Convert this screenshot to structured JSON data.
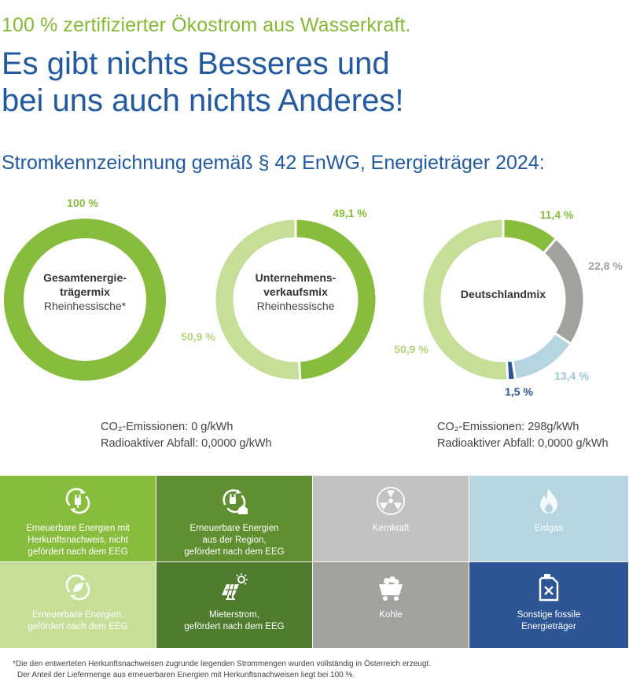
{
  "header": {
    "tagline": "100 % zertifizierter Ökostrom aus Wasserkraft.",
    "headline_line1": "Es gibt nichts Besseres und",
    "headline_line2": "bei uns auch nichts Anderes!",
    "subtitle": "Stromkennzeichnung gemäß § 42 EnWG, Energieträger 2024:"
  },
  "colors": {
    "green_main": "#88bc3c",
    "green_light": "#c5de98",
    "green_dark": "#4f7c2e",
    "green_mid": "#5f8f31",
    "grey": "#a3a19d",
    "grey_light": "#c3c2c2",
    "blue_light": "#b5d5e0",
    "blue_dark": "#2e5595",
    "headline_blue": "#23599e"
  },
  "chart_data": [
    {
      "type": "pie",
      "title": "Gesamtenergie-trägermix",
      "subtitle": "Rheinhessische*",
      "labels": [
        "100 %"
      ],
      "values": [
        100
      ],
      "colors": [
        "#88bc3c"
      ]
    },
    {
      "type": "pie",
      "title": "Unternehmens-verkaufsmix",
      "subtitle": "Rheinhessische",
      "labels": [
        "49,1 %",
        "50,9 %"
      ],
      "values": [
        49.1,
        50.9
      ],
      "colors": [
        "#88bc3c",
        "#c5de98"
      ]
    },
    {
      "type": "pie",
      "title": "Deutschlandmix",
      "subtitle": "",
      "labels": [
        "11,4 %",
        "22,8 %",
        "13,4 %",
        "1,5 %",
        "50,9 %"
      ],
      "values": [
        11.4,
        22.8,
        13.4,
        1.5,
        50.9
      ],
      "colors": [
        "#88bc3c",
        "#a3a19d",
        "#b5d5e0",
        "#2e5595",
        "#c5de98"
      ]
    }
  ],
  "emissions": {
    "left": {
      "co2": "CO₂-Emissionen: 0 g/kWh",
      "radio": "Radioaktiver Abfall: 0,0000 g/kWh"
    },
    "right": {
      "co2": "CO₂-Emissionen: 298g/kWh",
      "radio": "Radioaktiver Abfall: 0,0000 g/kWh"
    }
  },
  "legend": [
    {
      "label": "Erneuerbare Energien mit\nHerkunftsnachweis, nicht\ngefördert nach dem EEG",
      "color": "#88bc3c",
      "icon": "recycle-plug-icon"
    },
    {
      "label": "Erneuerbare Energien\naus der Region,\ngefördert nach dem EEG",
      "color": "#5f8f31",
      "icon": "recycle-plug-home-icon"
    },
    {
      "label": "Kernkraft",
      "color": "#c3c2c2",
      "icon": "nuclear-icon"
    },
    {
      "label": "Erdgas",
      "color": "#b5d5e0",
      "icon": "flame-icon"
    },
    {
      "label": "Erneuerbare Energien,\ngefördert nach dem EEG",
      "color": "#c5de98",
      "icon": "recycle-leaf-icon"
    },
    {
      "label": "Mieterstrom,\ngefördert nach dem EEG",
      "color": "#4f7c2e",
      "icon": "solar-panel-icon"
    },
    {
      "label": "Kohle",
      "color": "#a3a19d",
      "icon": "coal-cart-icon"
    },
    {
      "label": "Sonstige fossile\nEnergieträger",
      "color": "#2e5595",
      "icon": "fuel-canister-icon"
    }
  ],
  "footnote": {
    "line1": "*Die den entwerteten Herkunftsnachweisen zugrunde liegenden Strommengen wurden vollständig in Österreich erzeugt.",
    "line2": "Der Anteil der Liefermenge aus erneuerbaren Energien mit Herkunftsnachweisen liegt bei 100 %."
  }
}
